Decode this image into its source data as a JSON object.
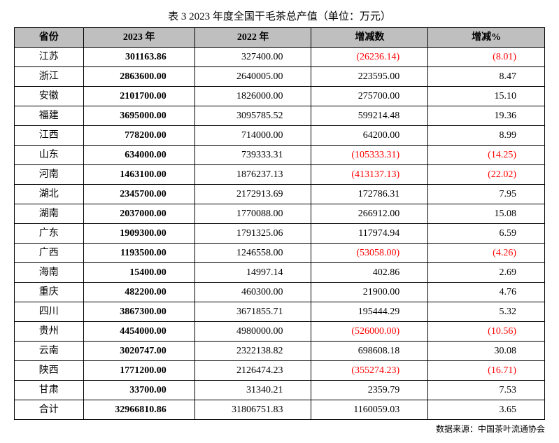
{
  "title": "表 3 2023 年度全国干毛茶总产值（单位：万元）",
  "source": "数据来源：中国茶叶流通协会",
  "headers": {
    "province": "省份",
    "y2023": "2023 年",
    "y2022": "2022 年",
    "delta": "增减数",
    "pct": "增减%"
  },
  "rows": [
    {
      "province": "江苏",
      "y2023": "301163.86",
      "y2022": "327400.00",
      "delta": "(26236.14)",
      "delta_neg": true,
      "pct": "(8.01)",
      "pct_neg": true
    },
    {
      "province": "浙江",
      "y2023": "2863600.00",
      "y2022": "2640005.00",
      "delta": "223595.00",
      "delta_neg": false,
      "pct": "8.47",
      "pct_neg": false
    },
    {
      "province": "安徽",
      "y2023": "2101700.00",
      "y2022": "1826000.00",
      "delta": "275700.00",
      "delta_neg": false,
      "pct": "15.10",
      "pct_neg": false
    },
    {
      "province": "福建",
      "y2023": "3695000.00",
      "y2022": "3095785.52",
      "delta": "599214.48",
      "delta_neg": false,
      "pct": "19.36",
      "pct_neg": false
    },
    {
      "province": "江西",
      "y2023": "778200.00",
      "y2022": "714000.00",
      "delta": "64200.00",
      "delta_neg": false,
      "pct": "8.99",
      "pct_neg": false
    },
    {
      "province": "山东",
      "y2023": "634000.00",
      "y2022": "739333.31",
      "delta": "(105333.31)",
      "delta_neg": true,
      "pct": "(14.25)",
      "pct_neg": true
    },
    {
      "province": "河南",
      "y2023": "1463100.00",
      "y2022": "1876237.13",
      "delta": "(413137.13)",
      "delta_neg": true,
      "pct": "(22.02)",
      "pct_neg": true
    },
    {
      "province": "湖北",
      "y2023": "2345700.00",
      "y2022": "2172913.69",
      "delta": "172786.31",
      "delta_neg": false,
      "pct": "7.95",
      "pct_neg": false
    },
    {
      "province": "湖南",
      "y2023": "2037000.00",
      "y2022": "1770088.00",
      "delta": "266912.00",
      "delta_neg": false,
      "pct": "15.08",
      "pct_neg": false
    },
    {
      "province": "广东",
      "y2023": "1909300.00",
      "y2022": "1791325.06",
      "delta": "117974.94",
      "delta_neg": false,
      "pct": "6.59",
      "pct_neg": false
    },
    {
      "province": "广西",
      "y2023": "1193500.00",
      "y2022": "1246558.00",
      "delta": "(53058.00)",
      "delta_neg": true,
      "pct": "(4.26)",
      "pct_neg": true
    },
    {
      "province": "海南",
      "y2023": "15400.00",
      "y2022": "14997.14",
      "delta": "402.86",
      "delta_neg": false,
      "pct": "2.69",
      "pct_neg": false
    },
    {
      "province": "重庆",
      "y2023": "482200.00",
      "y2022": "460300.00",
      "delta": "21900.00",
      "delta_neg": false,
      "pct": "4.76",
      "pct_neg": false
    },
    {
      "province": "四川",
      "y2023": "3867300.00",
      "y2022": "3671855.71",
      "delta": "195444.29",
      "delta_neg": false,
      "pct": "5.32",
      "pct_neg": false
    },
    {
      "province": "贵州",
      "y2023": "4454000.00",
      "y2022": "4980000.00",
      "delta": "(526000.00)",
      "delta_neg": true,
      "pct": "(10.56)",
      "pct_neg": true
    },
    {
      "province": "云南",
      "y2023": "3020747.00",
      "y2022": "2322138.82",
      "delta": "698608.18",
      "delta_neg": false,
      "pct": "30.08",
      "pct_neg": false
    },
    {
      "province": "陕西",
      "y2023": "1771200.00",
      "y2022": "2126474.23",
      "delta": "(355274.23)",
      "delta_neg": true,
      "pct": "(16.71)",
      "pct_neg": true
    },
    {
      "province": "甘肃",
      "y2023": "33700.00",
      "y2022": "31340.21",
      "delta": "2359.79",
      "delta_neg": false,
      "pct": "7.53",
      "pct_neg": false
    },
    {
      "province": "合计",
      "y2023": "32966810.86",
      "y2022": "31806751.83",
      "delta": "1160059.03",
      "delta_neg": false,
      "pct": "3.65",
      "pct_neg": false
    }
  ]
}
